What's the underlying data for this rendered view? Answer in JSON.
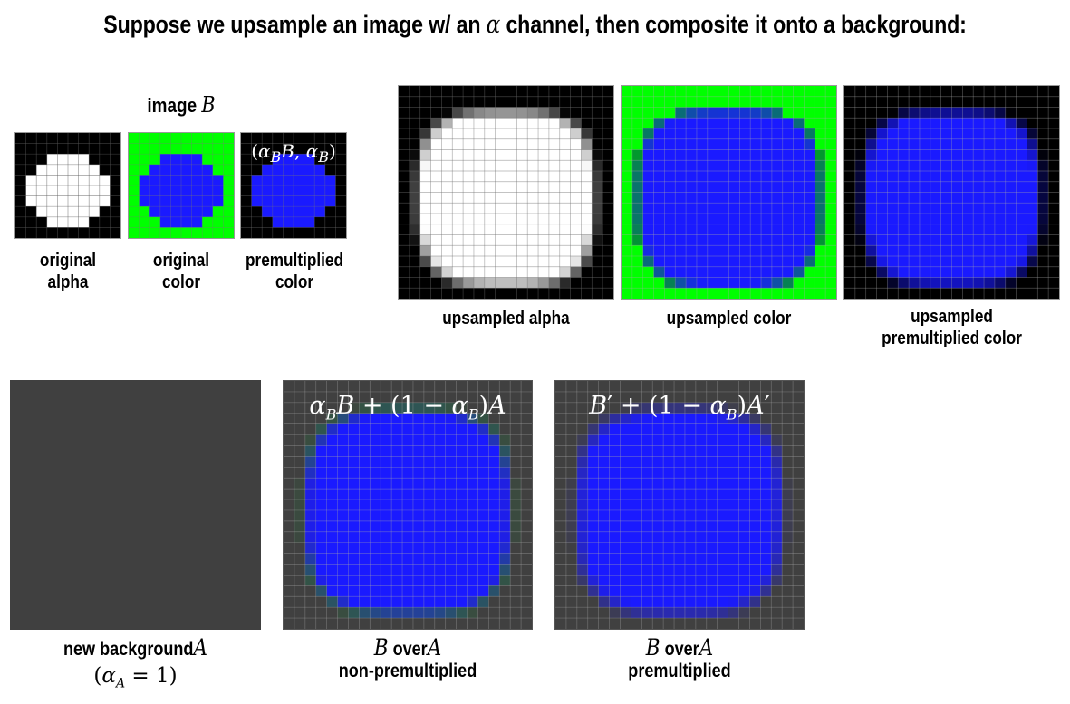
{
  "title": {
    "prefix": "Suppose we upsample an image w/ an",
    "alpha_symbol": "α",
    "suffix": "channel, then composite it onto a background:"
  },
  "image_b_header": {
    "text": "image",
    "symbol": "B"
  },
  "small_panels": {
    "premult_formula": "(α_B B, α_B)",
    "labels": [
      [
        "original",
        "alpha"
      ],
      [
        "original",
        "color"
      ],
      [
        "premultiplied",
        "color"
      ]
    ]
  },
  "upsampled_panels": {
    "labels": [
      [
        "upsampled alpha"
      ],
      [
        "upsampled color"
      ],
      [
        "upsampled",
        "premultiplied color"
      ]
    ]
  },
  "bottom_panels": {
    "background_label": {
      "text": "new background",
      "symbol": "A",
      "note": "(α_A = 1)"
    },
    "formula_non_premult": "α_B B + (1 − α_B)A",
    "formula_premult": "B′ + (1 − α_B)A′",
    "over_label_1": {
      "left": "B",
      "word": "over",
      "right": "A",
      "sub": "non-premultiplied"
    },
    "over_label_2": {
      "left": "B",
      "word": "over",
      "right": "A",
      "sub": "premultiplied"
    }
  },
  "colors": {
    "background_gray": "#404040",
    "green": "#00ff00",
    "blue": "#1a1aff",
    "black": "#000000",
    "white": "#ffffff"
  }
}
